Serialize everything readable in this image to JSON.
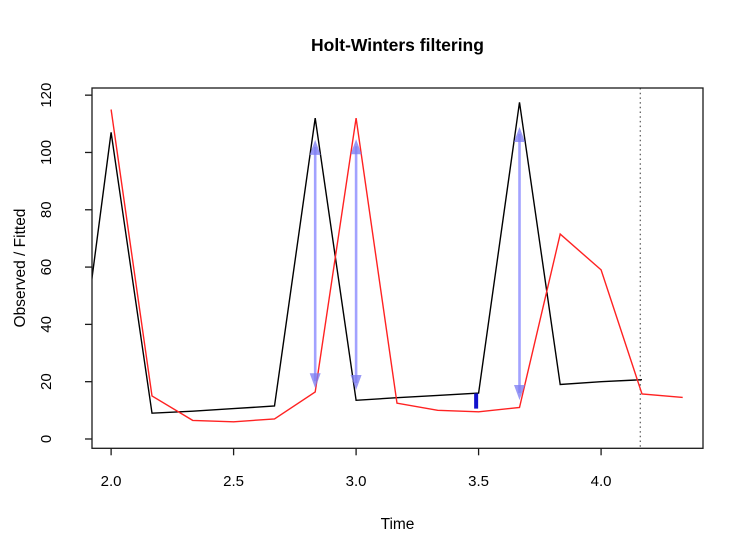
{
  "title": "Holt-Winters filtering",
  "chart_data": {
    "type": "line",
    "title": "Holt-Winters filtering",
    "xlabel": "Time",
    "ylabel": "Observed / Fitted",
    "x_tick_values": [
      2.0,
      2.5,
      3.0,
      3.5,
      4.0
    ],
    "x_tick_labels": [
      "2.0",
      "2.5",
      "3.0",
      "3.5",
      "4.0"
    ],
    "y_tick_values": [
      0,
      20,
      40,
      60,
      80,
      100,
      120
    ],
    "y_tick_labels": [
      "0",
      "20",
      "40",
      "60",
      "80",
      "100",
      "120"
    ],
    "xlim": [
      1.922,
      4.416
    ],
    "ylim": [
      -3.25,
      122.5
    ],
    "grid": false,
    "legend": null,
    "background": "#ffffff",
    "frame_color": "#1a1a1a",
    "series": [
      {
        "name": "observed",
        "color": "#000000",
        "x": [
          1.917,
          2.0,
          2.167,
          2.333,
          2.5,
          2.667,
          2.833,
          3.0,
          3.167,
          3.333,
          3.5,
          3.667,
          3.833,
          4.0,
          4.167
        ],
        "values": [
          53,
          107,
          9,
          9.7,
          10.6,
          11.5,
          112,
          13.5,
          14.4,
          15.2,
          16,
          117.5,
          19,
          20,
          20.7
        ]
      },
      {
        "name": "fitted",
        "color": "#ff2222",
        "x": [
          2.0,
          2.167,
          2.333,
          2.5,
          2.667,
          2.833,
          3.0,
          3.167,
          3.333,
          3.5,
          3.667,
          3.833,
          4.0,
          4.167,
          4.333
        ],
        "values": [
          115,
          15,
          6.5,
          6,
          7,
          16.4,
          112,
          12.5,
          10,
          9.5,
          11,
          71.5,
          59,
          15.7,
          14.5
        ]
      }
    ],
    "arrows": [
      {
        "x": 2.833,
        "v_from": 17.7,
        "v_to": 104.4,
        "heads": true
      },
      {
        "x": 3.0,
        "v_from": 17.1,
        "v_to": 104.6,
        "heads": true
      },
      {
        "x": 3.49,
        "v_from": 10.6,
        "v_to": 15.9,
        "heads": false
      },
      {
        "x": 3.667,
        "v_from": 13.6,
        "v_to": 108.9,
        "heads": true
      }
    ],
    "arrow_color": "#8c8cff",
    "arrow_head_color": "#7d7df2",
    "segment_color": "#1111cc",
    "vline": {
      "x": 4.16,
      "style": "dotted",
      "color": "#555555"
    }
  }
}
